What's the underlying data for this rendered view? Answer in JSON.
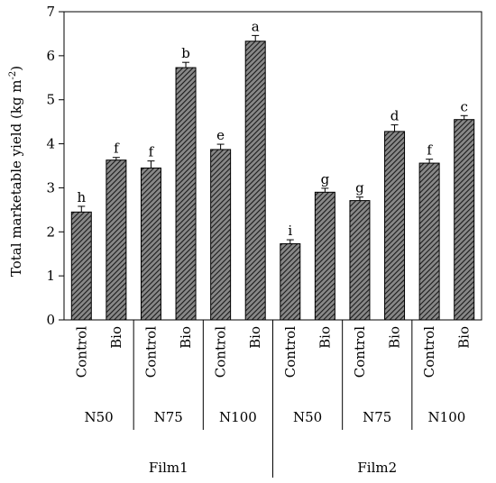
{
  "chart_data": {
    "type": "bar",
    "ylabel": "Total marketable yield (kg m",
    "ylabel_sup": "-2",
    "ylabel_tail": ")",
    "ylim": [
      0,
      7
    ],
    "yticks": [
      "0",
      "1",
      "2",
      "3",
      "4",
      "5",
      "6",
      "7"
    ],
    "grid": false,
    "bar_color": "#555555",
    "bar_pattern": "diagonal-hatch",
    "categories": [
      {
        "treatment": "Control",
        "nitrogen": "N50",
        "film": "Film1",
        "value": 2.45,
        "error": 0.13,
        "letter": "h"
      },
      {
        "treatment": "Bio",
        "nitrogen": "N50",
        "film": "Film1",
        "value": 3.63,
        "error": 0.06,
        "letter": "f"
      },
      {
        "treatment": "Control",
        "nitrogen": "N75",
        "film": "Film1",
        "value": 3.45,
        "error": 0.16,
        "letter": "f"
      },
      {
        "treatment": "Bio",
        "nitrogen": "N75",
        "film": "Film1",
        "value": 5.73,
        "error": 0.12,
        "letter": "b"
      },
      {
        "treatment": "Control",
        "nitrogen": "N100",
        "film": "Film1",
        "value": 3.87,
        "error": 0.12,
        "letter": "e"
      },
      {
        "treatment": "Bio",
        "nitrogen": "N100",
        "film": "Film1",
        "value": 6.33,
        "error": 0.13,
        "letter": "a"
      },
      {
        "treatment": "Control",
        "nitrogen": "N50",
        "film": "Film2",
        "value": 1.73,
        "error": 0.09,
        "letter": "i"
      },
      {
        "treatment": "Bio",
        "nitrogen": "N50",
        "film": "Film2",
        "value": 2.9,
        "error": 0.09,
        "letter": "g"
      },
      {
        "treatment": "Control",
        "nitrogen": "N75",
        "film": "Film2",
        "value": 2.71,
        "error": 0.08,
        "letter": "g"
      },
      {
        "treatment": "Bio",
        "nitrogen": "N75",
        "film": "Film2",
        "value": 4.28,
        "error": 0.15,
        "letter": "d"
      },
      {
        "treatment": "Control",
        "nitrogen": "N100",
        "film": "Film2",
        "value": 3.56,
        "error": 0.09,
        "letter": "f"
      },
      {
        "treatment": "Bio",
        "nitrogen": "N100",
        "film": "Film2",
        "value": 4.55,
        "error": 0.09,
        "letter": "c"
      }
    ],
    "nitrogen_groups": [
      {
        "label": "N50",
        "from": 0,
        "to": 1
      },
      {
        "label": "N75",
        "from": 2,
        "to": 3
      },
      {
        "label": "N100",
        "from": 4,
        "to": 5
      },
      {
        "label": "N50",
        "from": 6,
        "to": 7
      },
      {
        "label": "N75",
        "from": 8,
        "to": 9
      },
      {
        "label": "N100",
        "from": 10,
        "to": 11
      }
    ],
    "film_groups": [
      {
        "label": "Film1",
        "from": 0,
        "to": 5
      },
      {
        "label": "Film2",
        "from": 6,
        "to": 11
      }
    ]
  }
}
